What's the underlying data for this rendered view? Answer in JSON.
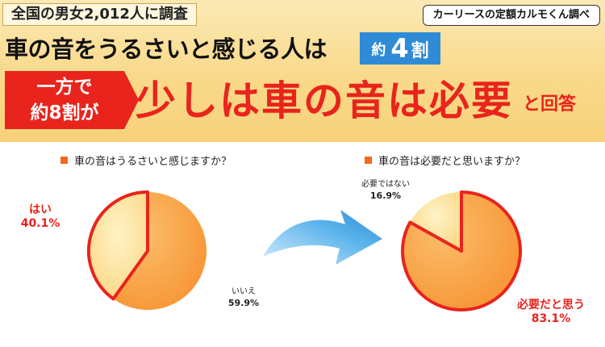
{
  "header": {
    "survey": "全国の男女2,012人に調査",
    "source": "カーリースの定額カルモくん調べ",
    "headline": "車の音をうるさいと感じる人は",
    "headline_badge_approx": "約",
    "headline_badge_value": "4",
    "headline_badge_suffix": "割",
    "red_tag_line1": "一方で",
    "red_tag_line2": "約8割が",
    "highlight": "少しは車の音は必要",
    "highlight_tail": "と回答"
  },
  "colors": {
    "banner": "#f9d98a",
    "accent_red": "#e8241c",
    "badge_blue": "#2f8bd6",
    "pie_orange": "#f8a040",
    "pie_yellow": "#fbe08e",
    "arrow_blue": "#2f8bd6"
  },
  "arrow_icon": "curved-arrow-right-icon",
  "chart_data": [
    {
      "type": "pie",
      "title": "車の音はうるさいと感じますか？",
      "labels": [
        "はい",
        "いいえ"
      ],
      "values": [
        40.1,
        59.9
      ],
      "value_labels": [
        "40.1%",
        "59.9%"
      ],
      "highlight": "はい"
    },
    {
      "type": "pie",
      "title": "車の音は必要だと思いますか？",
      "labels": [
        "必要ではない",
        "必要だと思う"
      ],
      "values": [
        16.9,
        83.1
      ],
      "value_labels": [
        "16.9%",
        "83.1%"
      ],
      "highlight": "必要だと思う"
    }
  ]
}
